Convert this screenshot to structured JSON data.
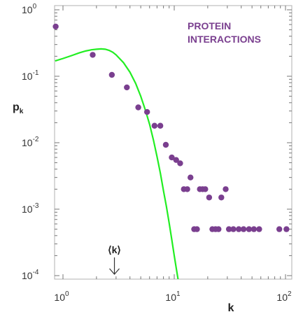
{
  "chart_data": {
    "type": "scatter",
    "title": "PROTEIN\nINTERACTIONS",
    "title_lines": [
      "PROTEIN",
      "INTERACTIONS"
    ],
    "xlabel": "k",
    "ylabel": "p",
    "ylabel_sub": "k",
    "x_scale": "log",
    "y_scale": "log",
    "xlim": [
      0.85,
      120
    ],
    "ylim": [
      0.0001,
      1
    ],
    "grid": false,
    "x_ticks": [
      {
        "value": 1,
        "base": "10",
        "exp": "0"
      },
      {
        "value": 10,
        "base": "10",
        "exp": "1"
      },
      {
        "value": 100,
        "base": "10",
        "exp": "2"
      }
    ],
    "y_ticks": [
      {
        "value": 1,
        "base": "10",
        "exp": "0"
      },
      {
        "value": 0.1,
        "base": "10",
        "exp": "-1"
      },
      {
        "value": 0.01,
        "base": "10",
        "exp": "-2"
      },
      {
        "value": 0.001,
        "base": "10",
        "exp": "-3"
      },
      {
        "value": 0.0001,
        "base": "10",
        "exp": "-4"
      }
    ],
    "annotation": {
      "label": "⟨k⟩",
      "x": 2.9
    },
    "series": [
      {
        "kind": "points",
        "color": "#7a3f8f",
        "points": [
          [
            0.86,
            0.56
          ],
          [
            1.85,
            0.21
          ],
          [
            2.75,
            0.105
          ],
          [
            3.75,
            0.068
          ],
          [
            4.75,
            0.034
          ],
          [
            5.7,
            0.029
          ],
          [
            6.65,
            0.018
          ],
          [
            7.5,
            0.018
          ],
          [
            8.4,
            0.0093
          ],
          [
            9.5,
            0.006
          ],
          [
            10.4,
            0.0055
          ],
          [
            11.3,
            0.0049
          ],
          [
            12.2,
            0.002
          ],
          [
            13.1,
            0.002
          ],
          [
            14.0,
            0.003
          ],
          [
            15.1,
            0.0005
          ],
          [
            16.0,
            0.0005
          ],
          [
            17.0,
            0.002
          ],
          [
            18.0,
            0.002
          ],
          [
            19.0,
            0.002
          ],
          [
            20.6,
            0.0015
          ],
          [
            22.0,
            0.0005
          ],
          [
            23.5,
            0.0005
          ],
          [
            25.0,
            0.0005
          ],
          [
            26.5,
            0.0015
          ],
          [
            29.0,
            0.002
          ],
          [
            31.0,
            0.0005
          ],
          [
            34.0,
            0.0005
          ],
          [
            38.0,
            0.0005
          ],
          [
            42.0,
            0.0005
          ],
          [
            47.0,
            0.0005
          ],
          [
            52.0,
            0.0005
          ],
          [
            58.0,
            0.0005
          ],
          [
            88.0,
            0.0005
          ],
          [
            102.0,
            0.0005
          ]
        ]
      },
      {
        "kind": "line",
        "color": "#22ee22",
        "points": [
          [
            0.85,
            0.17
          ],
          [
            1.0,
            0.185
          ],
          [
            1.2,
            0.205
          ],
          [
            1.4,
            0.225
          ],
          [
            1.6,
            0.24
          ],
          [
            1.8,
            0.25
          ],
          [
            2.0,
            0.255
          ],
          [
            2.2,
            0.258
          ],
          [
            2.4,
            0.255
          ],
          [
            2.6,
            0.245
          ],
          [
            2.8,
            0.23
          ],
          [
            3.0,
            0.21
          ],
          [
            3.5,
            0.16
          ],
          [
            4.0,
            0.115
          ],
          [
            4.5,
            0.078
          ],
          [
            5.0,
            0.05
          ],
          [
            5.5,
            0.031
          ],
          [
            6.0,
            0.019
          ],
          [
            6.5,
            0.011
          ],
          [
            7.0,
            0.0062
          ],
          [
            7.5,
            0.0035
          ],
          [
            8.0,
            0.0019
          ],
          [
            8.5,
            0.0011
          ],
          [
            9.0,
            0.00062
          ],
          [
            9.5,
            0.00035
          ],
          [
            10.0,
            0.0002
          ],
          [
            10.5,
            0.00012
          ],
          [
            11.0,
            7.5e-05
          ]
        ]
      }
    ]
  }
}
